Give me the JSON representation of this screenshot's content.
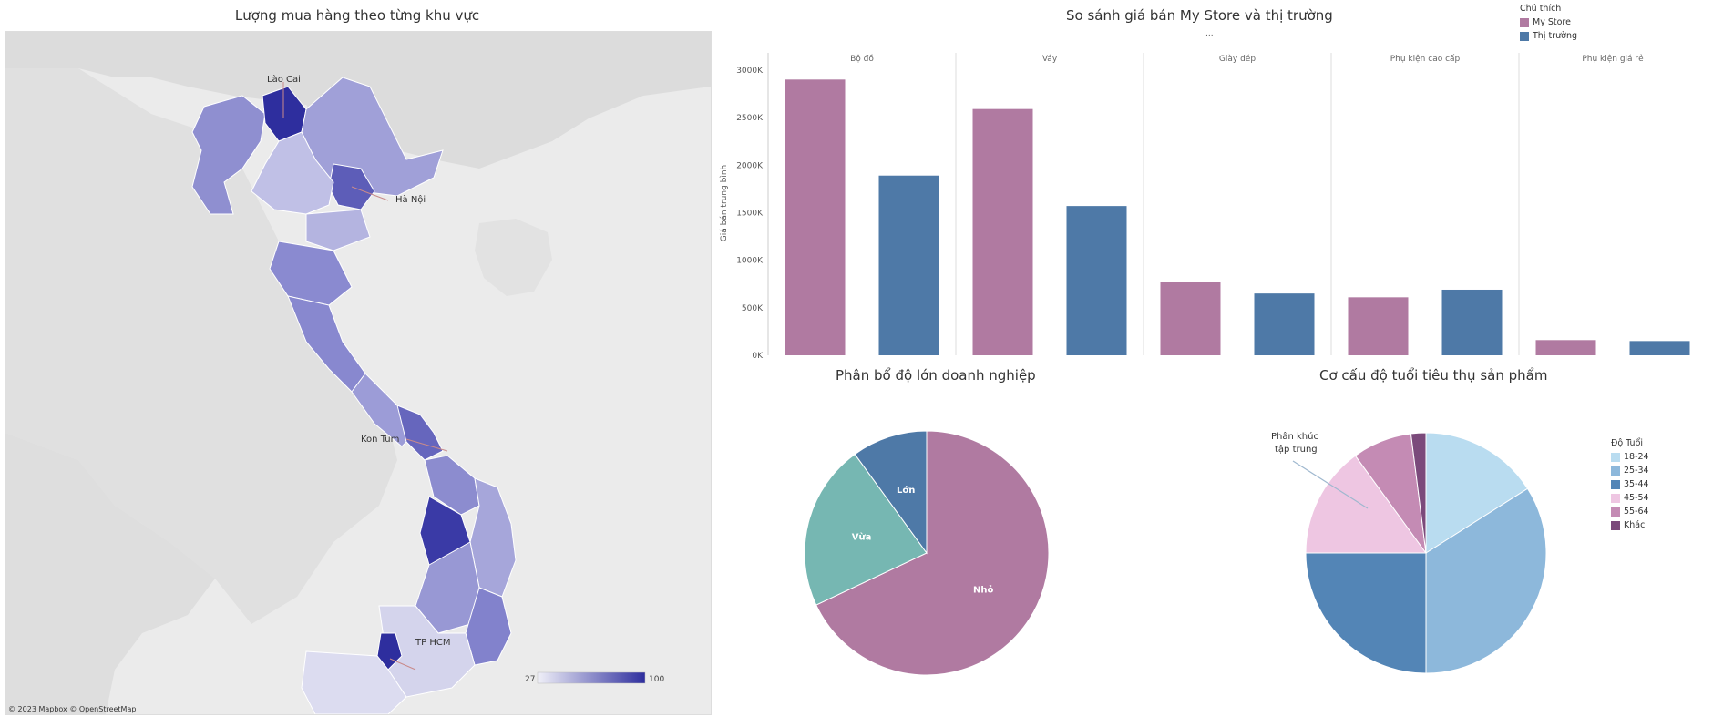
{
  "map": {
    "title": "Lượng mua hàng theo từng khu vực",
    "labels": {
      "laocai": "Lào Cai",
      "hanoi": "Hà Nội",
      "kontum": "Kon Tum",
      "hcm": "TP HCM"
    },
    "scale_min": "27",
    "scale_max": "100",
    "attribution": "© 2023 Mapbox  © OpenStreetMap",
    "color_low": "#e6e6f2",
    "color_high": "#2e2e9e"
  },
  "legend": {
    "title": "Chú thích",
    "items": [
      {
        "label": "My Store",
        "color": "#b07aa1"
      },
      {
        "label": "Thị trường",
        "color": "#4e79a7"
      }
    ]
  },
  "bar": {
    "title": "So sánh giá bán My Store và thị trường",
    "subtitle": "...",
    "ylabel": "Giá bán trung bình"
  },
  "pie1": {
    "title": "Phân bổ độ lớn doanh nghiệp"
  },
  "pie2": {
    "title": "Cơ cấu độ tuổi tiêu thụ sản phẩm",
    "annotation_line1": "Phân khúc",
    "annotation_line2": "tập trung",
    "legend_title": "Độ Tuổi"
  },
  "chart_data": [
    {
      "type": "bar",
      "categories": [
        "Bộ đồ",
        "Váy",
        "Giày dép",
        "Phụ kiện cao cấp",
        "Phụ kiện giá rẻ"
      ],
      "series": [
        {
          "name": "My Store",
          "values": [
            2900,
            2590,
            770,
            610,
            160
          ]
        },
        {
          "name": "Thị trường",
          "values": [
            1890,
            1570,
            650,
            690,
            150
          ]
        }
      ],
      "ylim": [
        0,
        3200
      ],
      "ticks": [
        0,
        500,
        1000,
        1500,
        2000,
        2500,
        3000
      ],
      "tick_labels": [
        "0K",
        "500K",
        "1000K",
        "1500K",
        "2000K",
        "2500K",
        "3000K"
      ],
      "ylabel": "Giá bán trung bình"
    },
    {
      "type": "pie",
      "slices": [
        {
          "label": "Nhỏ",
          "value": 68,
          "color": "#b07aa1"
        },
        {
          "label": "Vừa",
          "value": 22,
          "color": "#76b7b2"
        },
        {
          "label": "Lớn",
          "value": 10,
          "color": "#4e79a7"
        }
      ]
    },
    {
      "type": "pie",
      "slices": [
        {
          "label": "18-24",
          "value": 16,
          "color": "#b9dcf0"
        },
        {
          "label": "25-34",
          "value": 34,
          "color": "#8db8db"
        },
        {
          "label": "35-44",
          "value": 25,
          "color": "#5385b6"
        },
        {
          "label": "45-54",
          "value": 15,
          "color": "#eec6e2"
        },
        {
          "label": "55-64",
          "value": 8,
          "color": "#c48bb4"
        },
        {
          "label": "Khác",
          "value": 2,
          "color": "#7b4a7b"
        }
      ]
    }
  ]
}
